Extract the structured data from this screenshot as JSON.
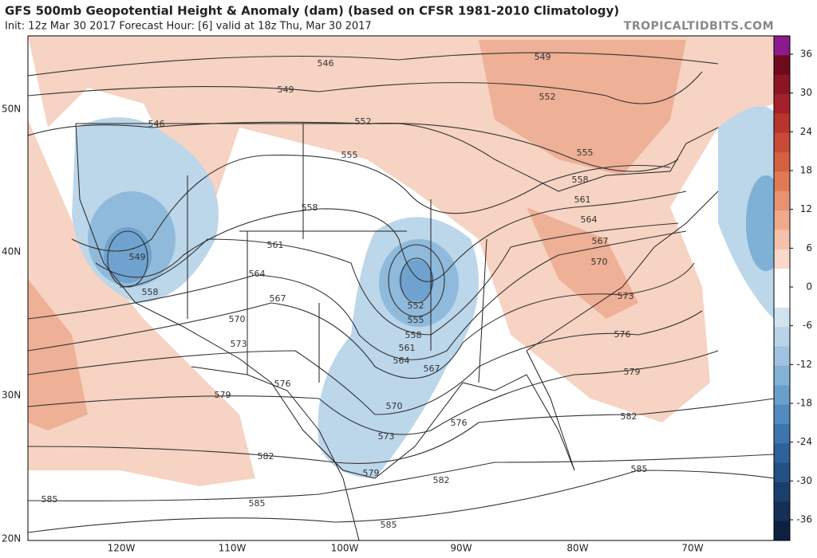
{
  "header": {
    "title": "GFS 500mb Geopotential Height & Anomaly (dam) (based on CFSR 1981-2010 Climatology)",
    "subtitle": "Init: 12z Mar 30 2017   Forecast Hour: [6]   valid at 18z Thu, Mar 30 2017",
    "watermark": "TROPICALTIDBITS.COM"
  },
  "colorbar": {
    "labels": [
      36,
      30,
      24,
      18,
      12,
      6,
      0,
      -6,
      -12,
      -18,
      -24,
      -30,
      -36
    ]
  },
  "axes": {
    "lat": [
      "50N",
      "40N",
      "30N",
      "20N"
    ],
    "lon": [
      "120W",
      "110W",
      "100W",
      "90W",
      "80W",
      "70W"
    ]
  },
  "contours": [
    546,
    549,
    549,
    552,
    552,
    546,
    555,
    555,
    558,
    561,
    558,
    564,
    567,
    561,
    570,
    549,
    564,
    552,
    555,
    558,
    558,
    567,
    573,
    561,
    570,
    576,
    573,
    564,
    567,
    579,
    576,
    579,
    570,
    582,
    576,
    573,
    582,
    579,
    582,
    585,
    585,
    585,
    585
  ]
}
